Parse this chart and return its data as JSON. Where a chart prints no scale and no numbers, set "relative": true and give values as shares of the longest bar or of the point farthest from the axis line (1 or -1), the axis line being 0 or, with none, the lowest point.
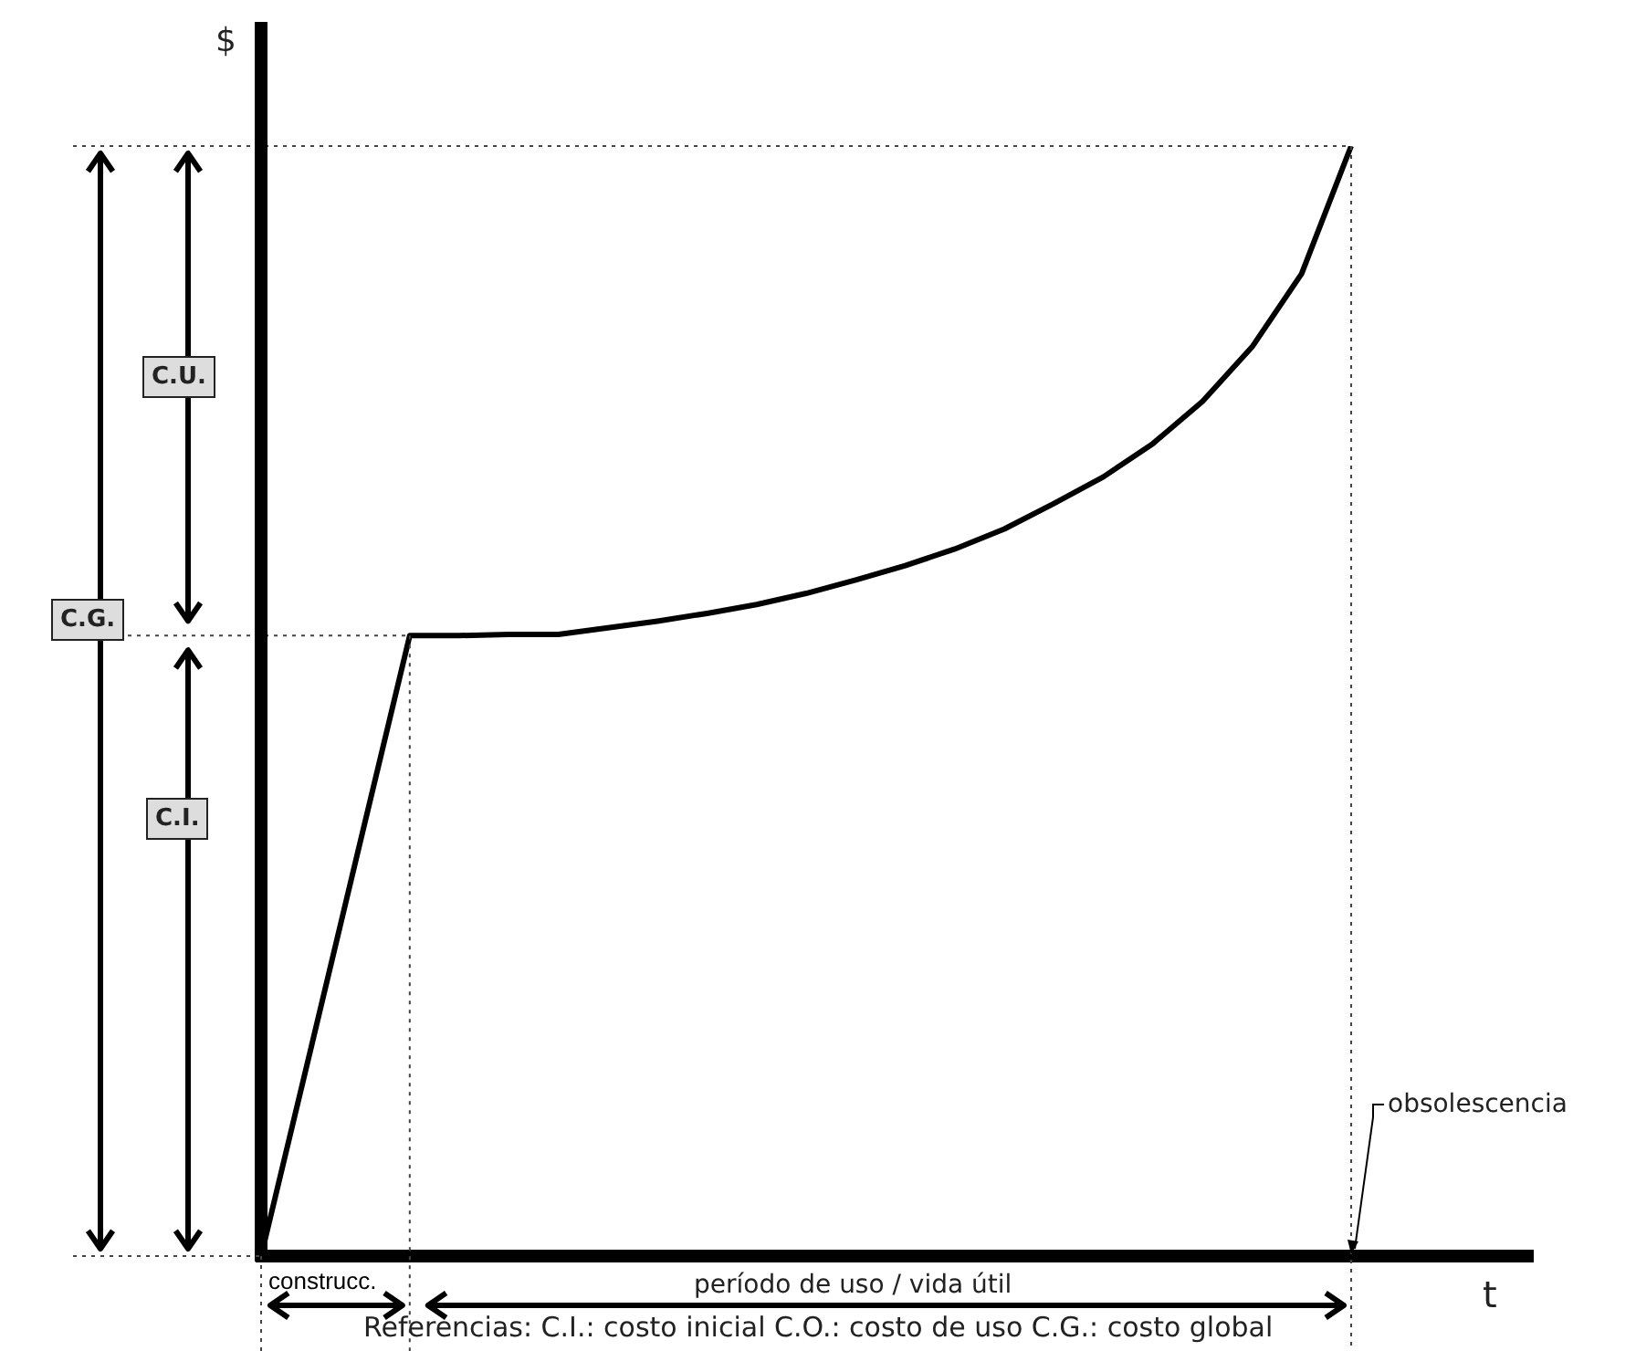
{
  "chart_data": {
    "type": "line",
    "relative": true,
    "ylabel": "$",
    "xlabel": "t",
    "color": "#000000",
    "marker": "none",
    "line_style": "solid",
    "legend": false,
    "categories": [
      null,
      null,
      null,
      null,
      null,
      null,
      null,
      null,
      null,
      null,
      null,
      null,
      null,
      null,
      null,
      null,
      null,
      null,
      null,
      null,
      null,
      null,
      null
    ],
    "values": [
      0,
      0.186,
      0.373,
      0.559,
      0.559,
      0.56,
      0.56,
      0.566,
      0.572,
      0.579,
      0.587,
      0.597,
      0.609,
      0.622,
      0.637,
      0.655,
      0.678,
      0.702,
      0.732,
      0.77,
      0.819,
      0.885,
      1
    ],
    "ref_lines": [
      {
        "axis": "y",
        "value": 1,
        "line_style": "dotted"
      },
      {
        "axis": "y",
        "value": 0.559,
        "line_style": "dotted"
      }
    ],
    "annotations": [
      "C.U.",
      "C.G.",
      "C.I.",
      "construcc.",
      "período de uso / vida útil",
      "obsolescencia",
      "Referencias:    C.I.: costo inicial    C.O.: costo de uso    C.G.: costo global"
    ]
  }
}
